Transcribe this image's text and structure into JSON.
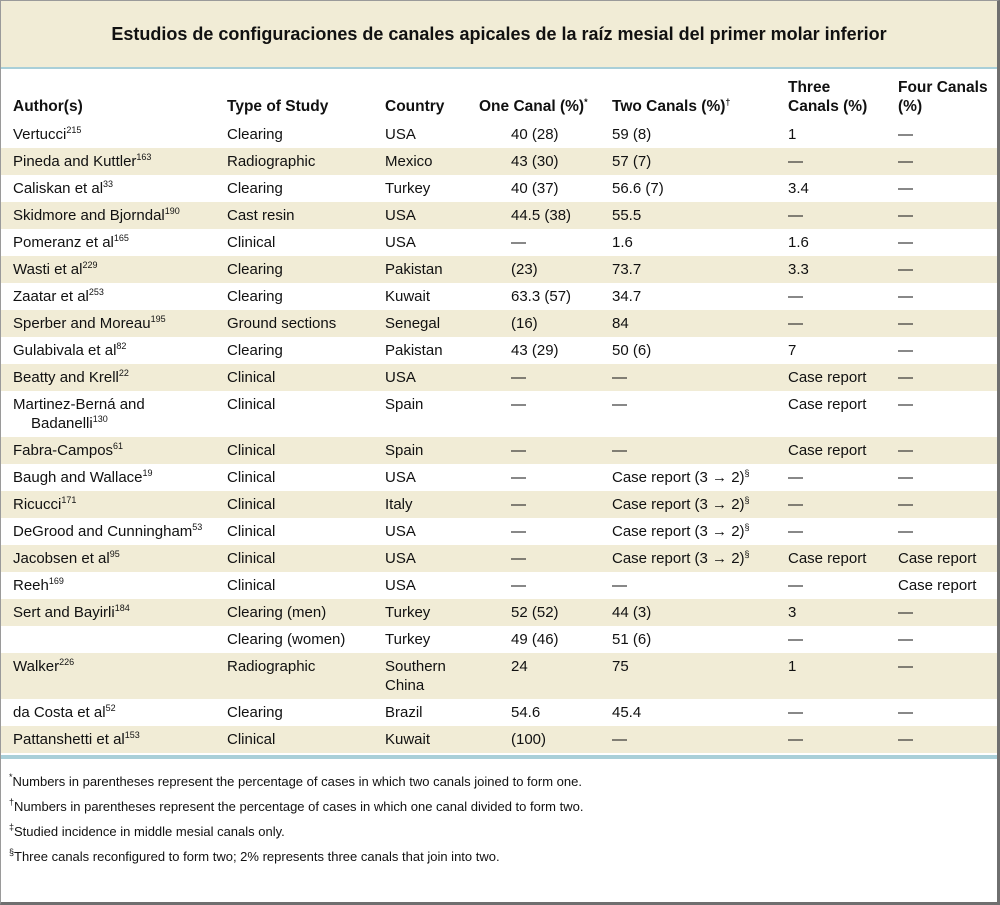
{
  "title": "Estudios de configuraciones de canales apicales de la raíz mesial del primer molar inferior",
  "table": {
    "columns": [
      {
        "text": "Author(s)"
      },
      {
        "text": "Type of Study"
      },
      {
        "text": "Country"
      },
      {
        "text": "One Canal (%)",
        "mark": "*"
      },
      {
        "text": "Two Canals (%)",
        "mark": "†"
      },
      {
        "text": "Three Canals (%)"
      },
      {
        "text": "Four Canals (%)"
      }
    ],
    "rows": [
      [
        {
          "text": "Vertucci",
          "mark": "215"
        },
        "Clearing",
        "USA",
        "40 (28)",
        "59 (8)",
        "1",
        "—"
      ],
      [
        {
          "text": "Pineda and Kuttler",
          "mark": "163"
        },
        "Radiographic",
        "Mexico",
        "43 (30)",
        "57 (7)",
        "—",
        "—"
      ],
      [
        {
          "text": "Caliskan et al",
          "mark": "33"
        },
        "Clearing",
        "Turkey",
        "40 (37)",
        "56.6 (7)",
        "3.4",
        "—"
      ],
      [
        {
          "text": "Skidmore and Bjorndal",
          "mark": "190"
        },
        "Cast resin",
        "USA",
        "44.5 (38)",
        "55.5",
        "—",
        "—"
      ],
      [
        {
          "text": "Pomeranz et al",
          "mark": "165"
        },
        "Clinical",
        "USA",
        "—",
        "1.6",
        "1.6",
        "—"
      ],
      [
        {
          "text": "Wasti et al",
          "mark": "229"
        },
        "Clearing",
        "Pakistan",
        "(23)",
        "73.7",
        "3.3",
        "—"
      ],
      [
        {
          "text": "Zaatar et al",
          "mark": "253"
        },
        "Clearing",
        "Kuwait",
        "63.3 (57)",
        "34.7",
        "—",
        "—"
      ],
      [
        {
          "text": "Sperber and Moreau",
          "mark": "195"
        },
        "Ground sections",
        "Senegal",
        "(16)",
        "84",
        "—",
        "—"
      ],
      [
        {
          "text": "Gulabivala et al",
          "mark": "82"
        },
        "Clearing",
        "Pakistan",
        "43 (29)",
        "50 (6)",
        "7",
        "—"
      ],
      [
        {
          "text": "Beatty and Krell",
          "mark": "22"
        },
        "Clinical",
        "USA",
        "—",
        "—",
        "Case report",
        "—"
      ],
      [
        {
          "text": "Martinez-Berná and Badanelli",
          "mark": "130"
        },
        "Clinical",
        "Spain",
        "—",
        "—",
        "Case report",
        "—"
      ],
      [
        {
          "text": "Fabra-Campos",
          "mark": "61"
        },
        "Clinical",
        "Spain",
        "—",
        "—",
        "Case report",
        "—"
      ],
      [
        {
          "text": "Baugh and Wallace",
          "mark": "19"
        },
        "Clinical",
        "USA",
        "—",
        {
          "text": "Case report (3 → 2)",
          "mark": "§"
        },
        "—",
        "—"
      ],
      [
        {
          "text": "Ricucci",
          "mark": "171"
        },
        "Clinical",
        "Italy",
        "—",
        {
          "text": "Case report (3 → 2)",
          "mark": "§"
        },
        "—",
        "—"
      ],
      [
        {
          "text": "DeGrood and Cunningham",
          "mark": "53"
        },
        "Clinical",
        "USA",
        "—",
        {
          "text": "Case report (3 → 2)",
          "mark": "§"
        },
        "—",
        "—"
      ],
      [
        {
          "text": "Jacobsen et al",
          "mark": "95"
        },
        "Clinical",
        "USA",
        "—",
        {
          "text": "Case report (3 → 2)",
          "mark": "§"
        },
        "Case report",
        "Case report"
      ],
      [
        {
          "text": "Reeh",
          "mark": "169"
        },
        "Clinical",
        "USA",
        "—",
        "—",
        "—",
        "Case report"
      ],
      [
        {
          "text": "Sert and Bayirli",
          "mark": "184"
        },
        "Clearing (men)",
        "Turkey",
        "52 (52)",
        "44 (3)",
        "3",
        "—"
      ],
      [
        null,
        "Clearing (women)",
        "Turkey",
        "49 (46)",
        "51 (6)",
        "—",
        "—"
      ],
      [
        {
          "text": "Walker",
          "mark": "226"
        },
        "Radiographic",
        "Southern China",
        "24",
        "75",
        "1",
        "—"
      ],
      [
        {
          "text": "da Costa et al",
          "mark": "52"
        },
        "Clearing",
        "Brazil",
        "54.6",
        "45.4",
        "—",
        "—"
      ],
      [
        {
          "text": "Pattanshetti et al",
          "mark": "153"
        },
        "Clinical",
        "Kuwait",
        "(100)",
        "—",
        "—",
        "—"
      ]
    ]
  },
  "footnotes": [
    {
      "mark": "*",
      "text": "Numbers in parentheses represent the percentage of cases in which two canals joined to form one."
    },
    {
      "mark": "†",
      "text": "Numbers in parentheses represent the percentage of cases in which one canal divided to form two."
    },
    {
      "mark": "‡",
      "text": "Studied incidence in middle mesial canals only."
    },
    {
      "mark": "§",
      "text": "Three canals reconfigured to form two; 2% represents three canals that join into two."
    }
  ]
}
